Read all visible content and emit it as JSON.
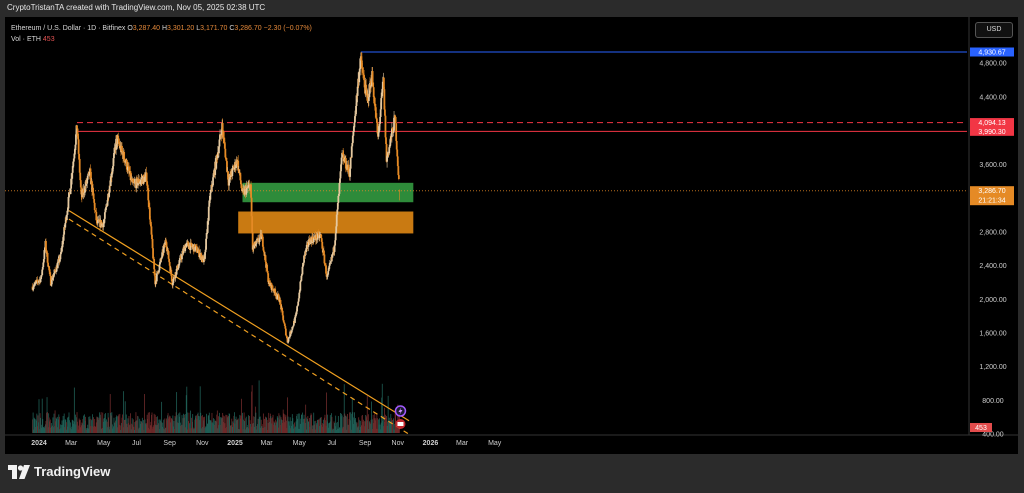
{
  "credit": "CryptoTristanTA created with TradingView.com, Nov 05, 2025 02:38 UTC",
  "legend": {
    "symbol": "Ethereum / U.S. Dollar · 1D · Bitfinex",
    "o_label": "O",
    "o": "3,287.40",
    "h_label": "H",
    "h": "3,301.20",
    "l_label": "L",
    "l": "3,171.70",
    "c_label": "C",
    "c": "3,286.70",
    "change": "−2.30 (−0.07%)",
    "vol_label": "Vol · ETH",
    "vol": "453"
  },
  "currency": "USD",
  "brand": "TradingView",
  "colors": {
    "bg": "#000000",
    "up": "#e5c9a0",
    "down": "#e58a25",
    "resistance": "#f23645",
    "blue": "#2962ff",
    "green_zone": "#2e8b3a",
    "orange_zone": "#c97a12",
    "trend": "#f0a020"
  },
  "chart_data": {
    "type": "candlestick",
    "symbol": "ETHUSD",
    "timeframe": "1D",
    "x_tick_labels": [
      "2024",
      "Mar",
      "May",
      "Jul",
      "Sep",
      "Nov",
      "2025",
      "Mar",
      "May",
      "Jul",
      "Sep",
      "Nov",
      "2026",
      "Mar",
      "May"
    ],
    "y_tick_labels": [
      "400.00",
      "800.00",
      "1,200.00",
      "1,600.00",
      "2,000.00",
      "2,400.00",
      "2,800.00",
      "3,600.00",
      "4,400.00",
      "4,800.00"
    ],
    "ylim": [
      0,
      5100
    ],
    "price_path": [
      {
        "date": "2023-12-20",
        "price": 2150
      },
      {
        "date": "2024-01-05",
        "price": 2250
      },
      {
        "date": "2024-01-13",
        "price": 2650
      },
      {
        "date": "2024-01-23",
        "price": 2200
      },
      {
        "date": "2024-02-10",
        "price": 2500
      },
      {
        "date": "2024-02-28",
        "price": 3300
      },
      {
        "date": "2024-03-12",
        "price": 4050
      },
      {
        "date": "2024-03-20",
        "price": 3200
      },
      {
        "date": "2024-04-05",
        "price": 3500
      },
      {
        "date": "2024-04-18",
        "price": 2900
      },
      {
        "date": "2024-05-01",
        "price": 2900
      },
      {
        "date": "2024-05-25",
        "price": 3900
      },
      {
        "date": "2024-06-10",
        "price": 3650
      },
      {
        "date": "2024-06-24",
        "price": 3350
      },
      {
        "date": "2024-07-20",
        "price": 3450
      },
      {
        "date": "2024-08-05",
        "price": 2200
      },
      {
        "date": "2024-08-25",
        "price": 2700
      },
      {
        "date": "2024-09-06",
        "price": 2200
      },
      {
        "date": "2024-10-01",
        "price": 2650
      },
      {
        "date": "2024-10-20",
        "price": 2600
      },
      {
        "date": "2024-11-05",
        "price": 2450
      },
      {
        "date": "2024-11-15",
        "price": 3200
      },
      {
        "date": "2024-12-08",
        "price": 4050
      },
      {
        "date": "2024-12-20",
        "price": 3400
      },
      {
        "date": "2025-01-05",
        "price": 3650
      },
      {
        "date": "2025-01-15",
        "price": 3250
      },
      {
        "date": "2025-01-30",
        "price": 3350
      },
      {
        "date": "2025-02-03",
        "price": 2600
      },
      {
        "date": "2025-02-20",
        "price": 2750
      },
      {
        "date": "2025-03-05",
        "price": 2200
      },
      {
        "date": "2025-03-25",
        "price": 2000
      },
      {
        "date": "2025-04-09",
        "price": 1500
      },
      {
        "date": "2025-04-25",
        "price": 1800
      },
      {
        "date": "2025-05-10",
        "price": 2500
      },
      {
        "date": "2025-05-20",
        "price": 2700
      },
      {
        "date": "2025-06-10",
        "price": 2750
      },
      {
        "date": "2025-06-22",
        "price": 2250
      },
      {
        "date": "2025-07-05",
        "price": 2600
      },
      {
        "date": "2025-07-20",
        "price": 3700
      },
      {
        "date": "2025-08-03",
        "price": 3500
      },
      {
        "date": "2025-08-23",
        "price": 4850
      },
      {
        "date": "2025-09-05",
        "price": 4350
      },
      {
        "date": "2025-09-14",
        "price": 4650
      },
      {
        "date": "2025-09-25",
        "price": 3900
      },
      {
        "date": "2025-10-05",
        "price": 4600
      },
      {
        "date": "2025-10-11",
        "price": 3650
      },
      {
        "date": "2025-10-27",
        "price": 4150
      },
      {
        "date": "2025-11-04",
        "price": 3287
      }
    ],
    "volume_note": "daily volume bars along bottom",
    "price_labels": [
      {
        "value": 4930.67,
        "text": "4,930.67",
        "color": "#2962ff"
      },
      {
        "value": 4094.13,
        "text": "4,094.13",
        "color": "#f23645"
      },
      {
        "value": 3990.3,
        "text": "3,990.30",
        "color": "#f23645"
      },
      {
        "value": 3286.7,
        "text": "3,286.70",
        "color": "#e58a25",
        "countdown": "21:21:34"
      }
    ],
    "volume_label": "453",
    "lines": [
      {
        "name": "high",
        "value": 4930.67,
        "from": "2025-08-24",
        "style": "solid",
        "color": "#2962ff"
      },
      {
        "name": "resistance-dashed",
        "value": 4094.13,
        "from": "2024-03-12",
        "style": "dashed",
        "color": "#f23645"
      },
      {
        "name": "resistance-solid",
        "value": 3990.3,
        "from": "2024-03-12",
        "style": "solid",
        "color": "#f23645"
      },
      {
        "name": "last-price",
        "value": 3286.7,
        "style": "dotted",
        "color": "#e58a25"
      }
    ],
    "zones": [
      {
        "name": "green-zone",
        "from": "2025-01-15",
        "to": "2025-11-30",
        "low": 3150,
        "high": 3380,
        "color": "#2e8b3a"
      },
      {
        "name": "orange-zone",
        "from": "2025-01-07",
        "to": "2025-11-30",
        "low": 2780,
        "high": 3040,
        "color": "#c97a12"
      }
    ],
    "trendlines": [
      {
        "name": "trendline-solid",
        "from": {
          "date": "2024-02-26",
          "price": 3050
        },
        "to": {
          "date": "2025-11-22",
          "price": 560
        },
        "style": "solid"
      },
      {
        "name": "trendline-dashed",
        "from": {
          "date": "2024-02-26",
          "price": 2950
        },
        "to": {
          "date": "2025-11-22",
          "price": 400
        },
        "style": "dashed"
      }
    ]
  }
}
